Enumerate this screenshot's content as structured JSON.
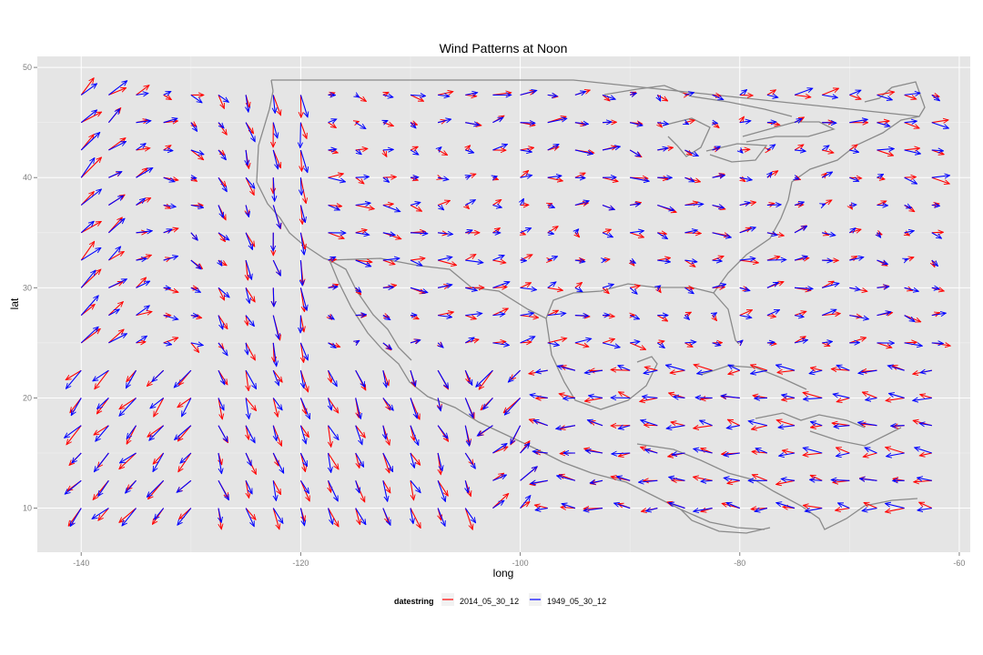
{
  "chart_data": {
    "type": "vector-field",
    "title": "Wind Patterns at Noon",
    "xlabel": "long",
    "ylabel": "lat",
    "xlim": [
      -144,
      -59
    ],
    "ylim": [
      6,
      51
    ],
    "xticks": [
      -140,
      -120,
      -100,
      -80,
      -60
    ],
    "yticks": [
      10,
      20,
      30,
      40,
      50
    ],
    "grid": true,
    "background": "#e5e5e5",
    "legend": {
      "title": "datestring",
      "position": "bottom",
      "entries": [
        {
          "label": "2014_05_30_12",
          "color": "#ff0000"
        },
        {
          "label": "1949_05_30_12",
          "color": "#0000ff"
        }
      ]
    },
    "grid_points": {
      "long_start": -140,
      "long_step": 2.5,
      "long_count": 32,
      "lat_start": 10,
      "lat_step": 2.5,
      "lat_count": 16
    },
    "series": [
      {
        "name": "2014_05_30_12",
        "color": "#ff0000",
        "sample_vectors_deg": [
          {
            "long": -140,
            "lat": 47.5,
            "dlong": 0.6,
            "dlat": 0.8
          },
          {
            "long": -130,
            "lat": 40,
            "dlong": 0.6,
            "dlat": -1.8
          },
          {
            "long": -127.5,
            "lat": 42.5,
            "dlong": 0.1,
            "dlat": -2.6
          },
          {
            "long": -100,
            "lat": 12.5,
            "dlong": 1.2,
            "dlat": 0.0
          },
          {
            "long": -65,
            "lat": 30,
            "dlong": 1.6,
            "dlat": 0.4
          }
        ]
      },
      {
        "name": "1949_05_30_12",
        "color": "#0000ff",
        "sample_vectors_deg": [
          {
            "long": -140,
            "lat": 42.5,
            "dlong": 2.2,
            "dlat": 2.0
          },
          {
            "long": -135,
            "lat": 45,
            "dlong": 1.3,
            "dlat": 2.0
          },
          {
            "long": -112.5,
            "lat": 10,
            "dlong": -1.0,
            "dlat": 0.5
          },
          {
            "long": -105,
            "lat": 15,
            "dlong": 1.3,
            "dlat": 1.5
          },
          {
            "long": -65,
            "lat": 47.5,
            "dlong": 1.5,
            "dlat": 0.5
          }
        ]
      }
    ]
  }
}
